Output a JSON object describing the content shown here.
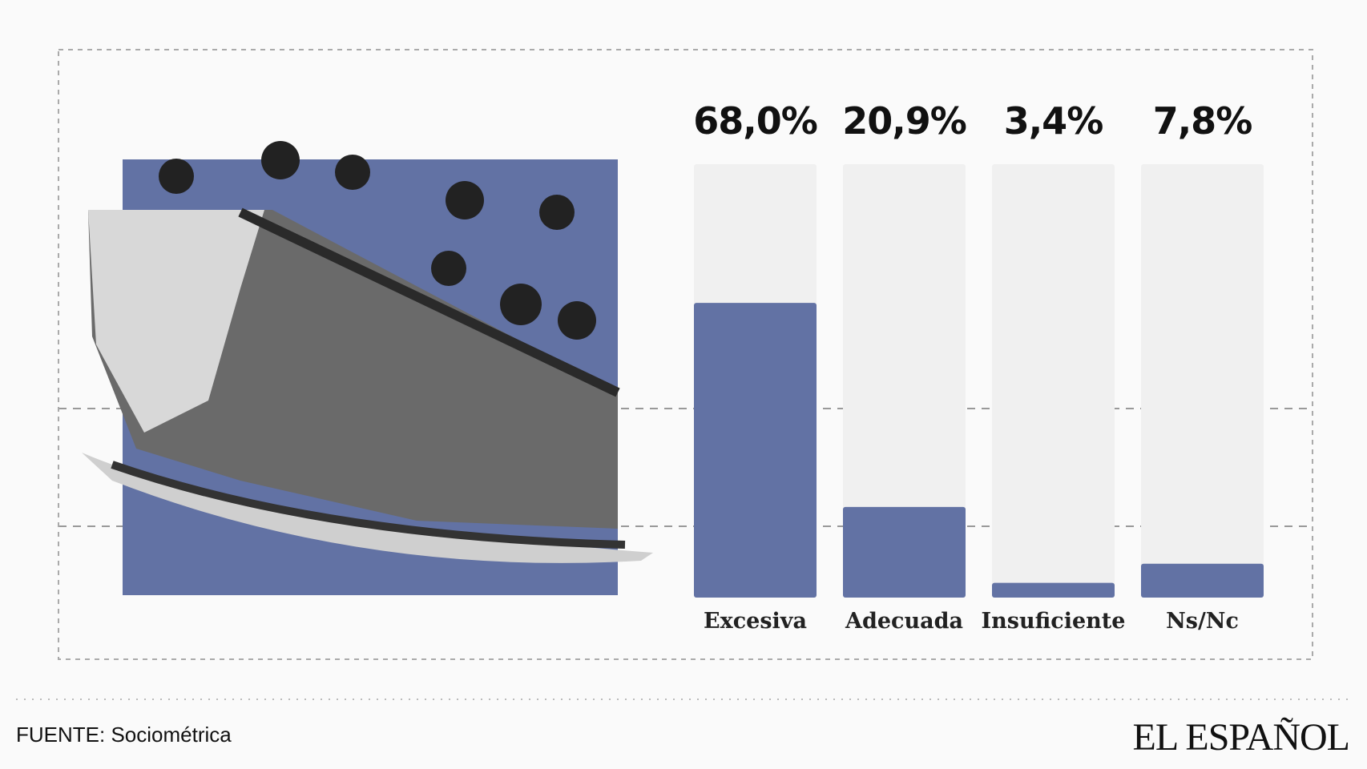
{
  "chart_data": {
    "type": "bar",
    "categories": [
      "Excesiva",
      "Adecuada",
      "Insuficiente",
      "Ns/Nc"
    ],
    "values": [
      68.0,
      20.9,
      3.4,
      7.8
    ],
    "value_labels": [
      "68,0%",
      "20,9%",
      "3,4%",
      "7,8%"
    ],
    "color": "#6272a4",
    "track_color": "#f0f0f0",
    "ylim": [
      0,
      100
    ],
    "source": "FUENTE: Sociométrica",
    "logo": "EL ESPAÑOL"
  }
}
